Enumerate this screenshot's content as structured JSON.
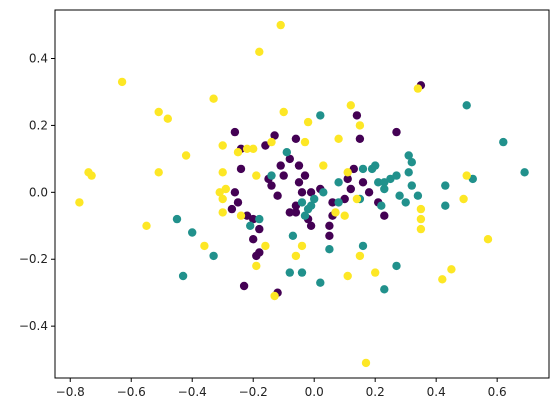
{
  "chart_data": {
    "type": "scatter",
    "title": "",
    "xlabel": "",
    "ylabel": "",
    "xlim": [
      -0.85,
      0.77
    ],
    "ylim": [
      -0.555,
      0.545
    ],
    "xticks": [
      -0.8,
      -0.6,
      -0.4,
      -0.2,
      0.0,
      0.2,
      0.4,
      0.6
    ],
    "yticks": [
      -0.4,
      -0.2,
      0.0,
      0.2,
      0.4
    ],
    "xtick_labels": [
      "−0.8",
      "−0.6",
      "−0.4",
      "−0.2",
      "0.0",
      "0.2",
      "0.4",
      "0.6"
    ],
    "ytick_labels": [
      "−0.4",
      "−0.2",
      "0.0",
      "0.2",
      "0.4"
    ],
    "grid": false,
    "series": [
      {
        "color": "#440154",
        "points": [
          [
            0.35,
            0.32
          ],
          [
            0.27,
            0.18
          ],
          [
            0.14,
            0.23
          ],
          [
            0.15,
            0.16
          ],
          [
            0.13,
            0.07
          ],
          [
            0.11,
            0.04
          ],
          [
            0.12,
            0.01
          ],
          [
            0.16,
            0.03
          ],
          [
            0.1,
            -0.02
          ],
          [
            0.18,
            0.0
          ],
          [
            0.21,
            -0.03
          ],
          [
            0.23,
            -0.07
          ],
          [
            0.06,
            -0.03
          ],
          [
            0.06,
            -0.07
          ],
          [
            0.05,
            -0.1
          ],
          [
            0.05,
            -0.13
          ],
          [
            -0.01,
            -0.1
          ],
          [
            -0.06,
            -0.06
          ],
          [
            -0.08,
            -0.06
          ],
          [
            -0.06,
            -0.04
          ],
          [
            -0.04,
            0.0
          ],
          [
            -0.05,
            0.03
          ],
          [
            -0.05,
            0.08
          ],
          [
            -0.06,
            0.16
          ],
          [
            -0.08,
            0.1
          ],
          [
            -0.11,
            0.08
          ],
          [
            -0.1,
            0.05
          ],
          [
            -0.12,
            -0.01
          ],
          [
            -0.14,
            0.02
          ],
          [
            -0.15,
            0.04
          ],
          [
            -0.13,
            0.17
          ],
          [
            -0.16,
            0.14
          ],
          [
            -0.24,
            0.13
          ],
          [
            -0.26,
            0.18
          ],
          [
            -0.24,
            0.07
          ],
          [
            -0.26,
            0.0
          ],
          [
            -0.25,
            -0.03
          ],
          [
            -0.27,
            -0.05
          ],
          [
            -0.22,
            -0.07
          ],
          [
            -0.2,
            -0.08
          ],
          [
            -0.18,
            -0.11
          ],
          [
            -0.2,
            -0.14
          ],
          [
            -0.18,
            -0.18
          ],
          [
            -0.19,
            -0.19
          ],
          [
            -0.23,
            -0.28
          ],
          [
            -0.12,
            -0.3
          ],
          [
            -0.02,
            -0.08
          ],
          [
            0.02,
            0.01
          ],
          [
            -0.01,
            0.0
          ],
          [
            -0.03,
            0.05
          ]
        ]
      },
      {
        "color": "#21918c",
        "points": [
          [
            0.69,
            0.06
          ],
          [
            0.62,
            0.15
          ],
          [
            0.52,
            0.04
          ],
          [
            0.5,
            0.26
          ],
          [
            0.43,
            0.02
          ],
          [
            0.43,
            -0.04
          ],
          [
            0.34,
            -0.01
          ],
          [
            0.32,
            0.02
          ],
          [
            0.31,
            0.06
          ],
          [
            0.31,
            0.11
          ],
          [
            0.32,
            0.09
          ],
          [
            0.25,
            0.04
          ],
          [
            0.23,
            0.01
          ],
          [
            0.21,
            0.03
          ],
          [
            0.23,
            0.03
          ],
          [
            0.19,
            0.07
          ],
          [
            0.16,
            0.07
          ],
          [
            0.2,
            0.08
          ],
          [
            0.27,
            0.05
          ],
          [
            0.28,
            -0.01
          ],
          [
            0.3,
            -0.03
          ],
          [
            0.22,
            -0.04
          ],
          [
            0.15,
            -0.02
          ],
          [
            0.08,
            -0.03
          ],
          [
            0.08,
            0.03
          ],
          [
            0.02,
            0.23
          ],
          [
            0.03,
            0.0
          ],
          [
            -0.01,
            -0.04
          ],
          [
            -0.04,
            -0.03
          ],
          [
            -0.03,
            -0.07
          ],
          [
            -0.07,
            -0.13
          ],
          [
            -0.08,
            -0.24
          ],
          [
            -0.04,
            -0.24
          ],
          [
            0.02,
            -0.27
          ],
          [
            0.05,
            -0.17
          ],
          [
            0.16,
            -0.16
          ],
          [
            0.23,
            -0.29
          ],
          [
            0.27,
            -0.22
          ],
          [
            -0.09,
            0.12
          ],
          [
            -0.14,
            0.05
          ],
          [
            -0.18,
            -0.08
          ],
          [
            -0.33,
            -0.19
          ],
          [
            -0.4,
            -0.12
          ],
          [
            -0.45,
            -0.08
          ],
          [
            -0.43,
            -0.25
          ],
          [
            -0.21,
            -0.1
          ],
          [
            -0.02,
            -0.05
          ],
          [
            0.0,
            -0.02
          ]
        ]
      },
      {
        "color": "#fde725",
        "points": [
          [
            -0.11,
            0.5
          ],
          [
            -0.18,
            0.42
          ],
          [
            -0.63,
            0.33
          ],
          [
            -0.51,
            0.24
          ],
          [
            -0.48,
            0.22
          ],
          [
            -0.42,
            0.11
          ],
          [
            -0.51,
            0.06
          ],
          [
            -0.73,
            0.05
          ],
          [
            -0.74,
            0.06
          ],
          [
            -0.77,
            -0.03
          ],
          [
            -0.55,
            -0.1
          ],
          [
            -0.36,
            -0.16
          ],
          [
            -0.33,
            0.28
          ],
          [
            -0.22,
            0.13
          ],
          [
            -0.25,
            0.12
          ],
          [
            -0.2,
            0.13
          ],
          [
            -0.14,
            0.15
          ],
          [
            -0.3,
            0.14
          ],
          [
            -0.3,
            0.06
          ],
          [
            -0.3,
            -0.02
          ],
          [
            -0.31,
            0.0
          ],
          [
            -0.29,
            0.01
          ],
          [
            -0.3,
            -0.06
          ],
          [
            -0.24,
            -0.07
          ],
          [
            -0.19,
            0.05
          ],
          [
            -0.16,
            -0.16
          ],
          [
            -0.19,
            -0.22
          ],
          [
            -0.1,
            0.24
          ],
          [
            -0.03,
            0.15
          ],
          [
            -0.02,
            0.21
          ],
          [
            -0.04,
            -0.16
          ],
          [
            0.03,
            0.08
          ],
          [
            0.08,
            0.16
          ],
          [
            0.12,
            0.26
          ],
          [
            0.15,
            0.2
          ],
          [
            0.11,
            0.06
          ],
          [
            0.14,
            -0.02
          ],
          [
            0.1,
            -0.07
          ],
          [
            0.11,
            -0.25
          ],
          [
            0.15,
            -0.19
          ],
          [
            0.2,
            -0.24
          ],
          [
            0.17,
            -0.51
          ],
          [
            0.34,
            0.31
          ],
          [
            0.35,
            -0.05
          ],
          [
            0.35,
            -0.08
          ],
          [
            0.35,
            -0.11
          ],
          [
            0.42,
            -0.26
          ],
          [
            0.45,
            -0.23
          ],
          [
            0.5,
            0.05
          ],
          [
            0.49,
            -0.02
          ],
          [
            0.57,
            -0.14
          ],
          [
            -0.13,
            -0.31
          ],
          [
            -0.06,
            -0.19
          ],
          [
            0.07,
            -0.06
          ]
        ]
      }
    ]
  }
}
